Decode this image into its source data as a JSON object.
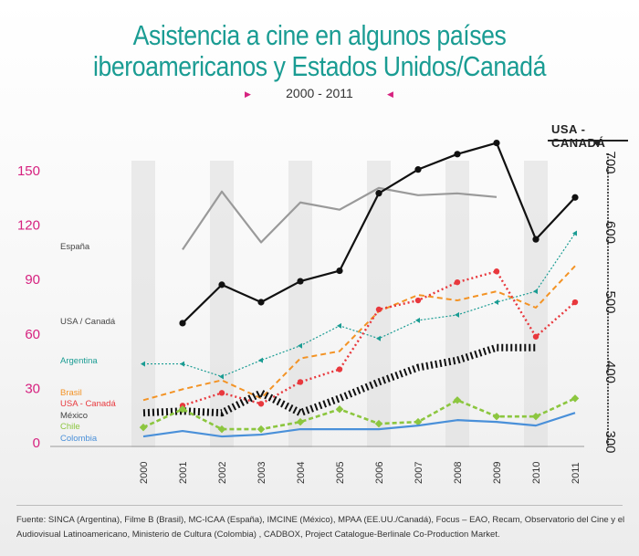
{
  "title_line1": "Asistencia a cine en algunos países",
  "title_line2": "iberoamericanos y Estados Unidos/Canadá",
  "subtitle": "2000 - 2011",
  "usa_axis_title": "USA - CANADÁ",
  "source_text": "Fuente: SINCA (Argentina), Filme B (Brasil), MC-ICAA (España), IMCINE (México), MPAA (EE.UU./Canadá), Focus – EAO, Recam, Observatorio del Cine y el Audiovisual Latinoamericano, Ministerio de Cultura (Colombia) , CADBOX, Project Catalogue-Berlinale Co-Production Market.",
  "colors": {
    "title": "#1a9c93",
    "left_axis": "#d6217f",
    "band": "#dcdcdc"
  },
  "chart_data": {
    "type": "line",
    "x": [
      "2000",
      "2001",
      "2002",
      "2003",
      "2004",
      "2005",
      "2006",
      "2007",
      "2008",
      "2009",
      "2010",
      "2011"
    ],
    "left_axis": {
      "ticks": [
        0,
        30,
        60,
        90,
        120,
        150
      ],
      "ylim": [
        0,
        150
      ]
    },
    "right_axis": {
      "ticks": [
        300,
        400,
        500,
        600,
        700
      ],
      "ylim": [
        300,
        700
      ]
    },
    "series": [
      {
        "name": "España",
        "axis": "left",
        "color": "#9a9a9a",
        "style": "solid",
        "markers": false,
        "values": [
          null,
          106,
          138,
          110,
          132,
          128,
          140,
          136,
          137,
          135,
          null,
          null
        ]
      },
      {
        "name": "USA / Canadá",
        "axis": "right",
        "color": "#111111",
        "style": "solid",
        "markers": true,
        "values": [
          null,
          470,
          525,
          500,
          530,
          545,
          656,
          690,
          712,
          728,
          590,
          650
        ]
      },
      {
        "name": "Argentina",
        "axis": "left",
        "color": "#1a9c93",
        "style": "dotted-arrow",
        "markers": false,
        "values": [
          43,
          43,
          36,
          45,
          53,
          64,
          57,
          67,
          70,
          77,
          83,
          115
        ]
      },
      {
        "name": "Brasil",
        "axis": "left",
        "color": "#f39325",
        "style": "dashed",
        "markers": false,
        "values": [
          23,
          29,
          34,
          24,
          46,
          50,
          72,
          81,
          78,
          83,
          74,
          97
        ]
      },
      {
        "name": "USA - Canadá",
        "axis": "left",
        "color": "#e8383d",
        "style": "dotted",
        "markers": true,
        "values": [
          null,
          20,
          27,
          21,
          33,
          40,
          73,
          78,
          88,
          94,
          58,
          77
        ]
      },
      {
        "name": "México",
        "axis": "left",
        "color": "#111111",
        "style": "thick-dotted",
        "markers": false,
        "values": [
          16,
          17,
          16,
          27,
          16,
          24,
          33,
          41,
          45,
          52,
          52,
          null
        ]
      },
      {
        "name": "Chile",
        "axis": "left",
        "color": "#8cc63f",
        "style": "dashed-markers",
        "markers": true,
        "values": [
          8,
          18,
          7,
          7,
          11,
          18,
          10,
          11,
          23,
          14,
          14,
          24
        ]
      },
      {
        "name": "Colombia",
        "axis": "left",
        "color": "#4a90d9",
        "style": "solid",
        "markers": false,
        "values": [
          3,
          6,
          3,
          4,
          7,
          7,
          7,
          9,
          12,
          11,
          9,
          16
        ]
      }
    ],
    "legend_labels": [
      "España",
      "USA / Canadá",
      "Argentina",
      "Brasil",
      "USA - Canadá",
      "México",
      "Chile",
      "Colombia"
    ]
  }
}
